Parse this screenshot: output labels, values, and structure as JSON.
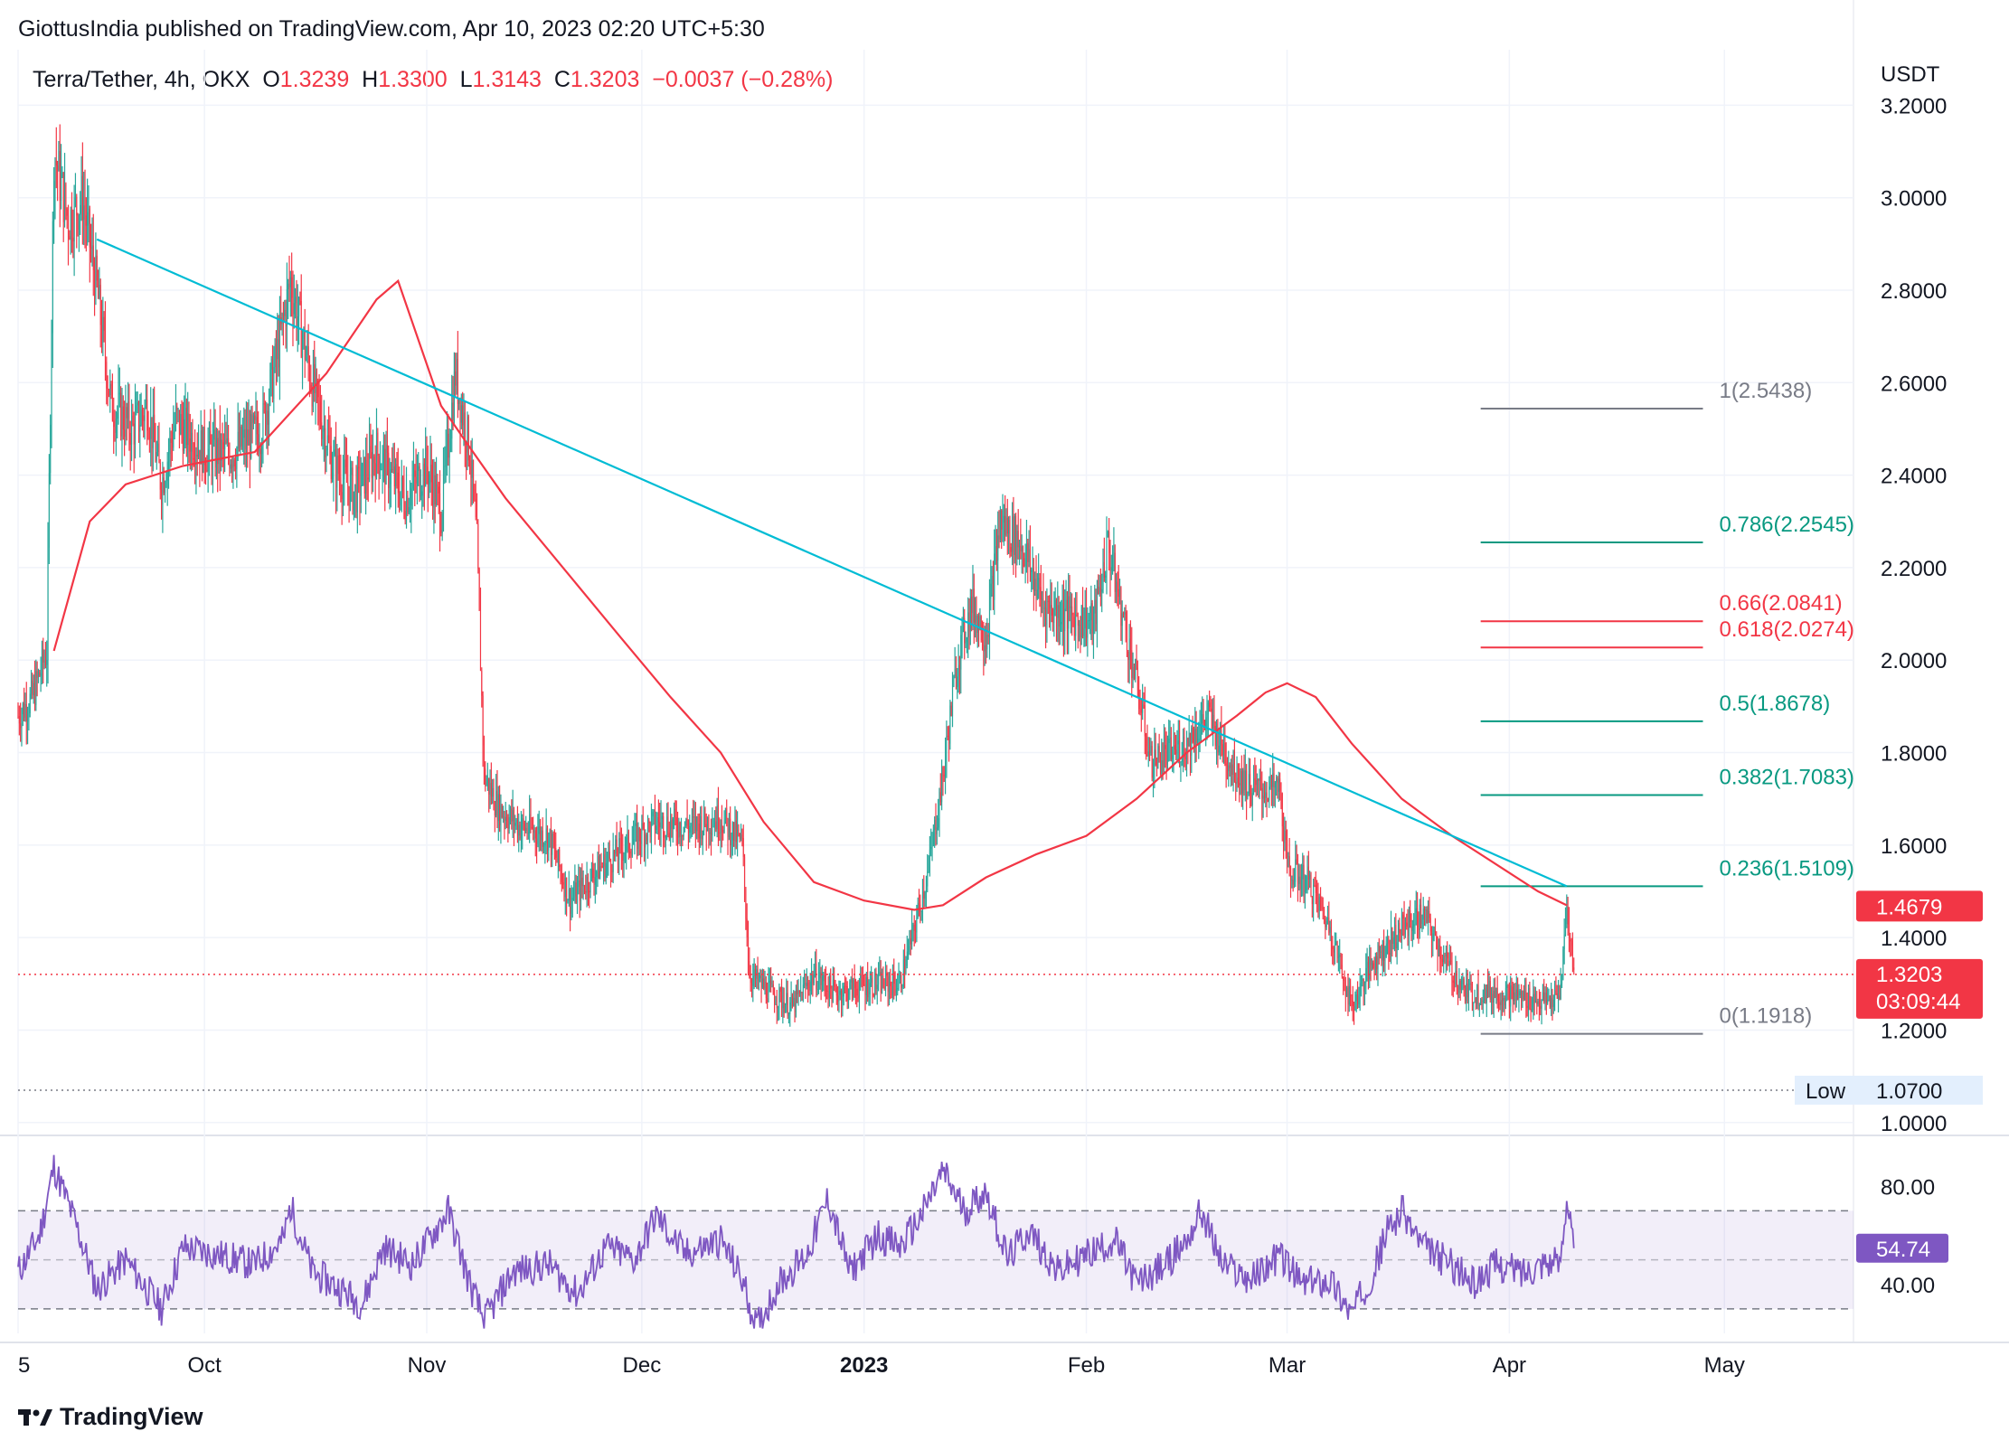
{
  "publisher_line": "GiottusIndia published on TradingView.com, Apr 10, 2023 02:20 UTC+5:30",
  "symbol": {
    "name": "Terra/Tether, 4h, OKX",
    "open_label": "O",
    "open": "1.3239",
    "high_label": "H",
    "high": "1.3300",
    "low_label": "L",
    "low": "1.3143",
    "close_label": "C",
    "close": "1.3203",
    "change": "−0.0037 (−0.28%)"
  },
  "brand": "TradingView",
  "colors": {
    "up": "#26a69a",
    "down": "#f23645",
    "ma": "#f23645",
    "trendline": "#00bcd4",
    "rsi": "#7e57c2",
    "fib_gray": "#787b86",
    "fib_green": "#089981",
    "fib_red": "#f23645",
    "grid": "#f0f3fa",
    "text": "#131722"
  },
  "chart_data": [
    {
      "type": "candlestick",
      "title": "Terra/Tether, 4h, OKX",
      "currency_label": "USDT",
      "ylim": [
        0.98,
        3.32
      ],
      "y_ticks": [
        "3.2000",
        "3.0000",
        "2.8000",
        "2.6000",
        "2.4000",
        "2.2000",
        "2.0000",
        "1.8000",
        "1.6000",
        "1.4000",
        "1.2000",
        "1.0000"
      ],
      "x_range": [
        "2022-09-05",
        "2023-05-19"
      ],
      "x_ticks": [
        {
          "date": "2022-09-05",
          "label": "5"
        },
        {
          "date": "2022-10-01",
          "label": "Oct"
        },
        {
          "date": "2022-11-01",
          "label": "Nov"
        },
        {
          "date": "2022-12-01",
          "label": "Dec"
        },
        {
          "date": "2023-01-01",
          "label": "2023"
        },
        {
          "date": "2023-02-01",
          "label": "Feb"
        },
        {
          "date": "2023-03-01",
          "label": "Mar"
        },
        {
          "date": "2023-04-01",
          "label": "Apr"
        },
        {
          "date": "2023-05-01",
          "label": "May"
        }
      ],
      "price_path": [
        [
          "2022-09-05",
          1.88
        ],
        [
          "2022-09-07",
          1.92
        ],
        [
          "2022-09-09",
          2.02
        ],
        [
          "2022-09-10",
          3.1
        ],
        [
          "2022-09-12",
          2.95
        ],
        [
          "2022-09-14",
          3.0
        ],
        [
          "2022-09-16",
          2.8
        ],
        [
          "2022-09-18",
          2.55
        ],
        [
          "2022-09-21",
          2.5
        ],
        [
          "2022-09-23",
          2.55
        ],
        [
          "2022-09-25",
          2.38
        ],
        [
          "2022-09-27",
          2.52
        ],
        [
          "2022-10-01",
          2.45
        ],
        [
          "2022-10-05",
          2.45
        ],
        [
          "2022-10-09",
          2.5
        ],
        [
          "2022-10-11",
          2.65
        ],
        [
          "2022-10-13",
          2.82
        ],
        [
          "2022-10-16",
          2.6
        ],
        [
          "2022-10-19",
          2.42
        ],
        [
          "2022-10-22",
          2.36
        ],
        [
          "2022-10-25",
          2.45
        ],
        [
          "2022-10-29",
          2.35
        ],
        [
          "2022-11-01",
          2.42
        ],
        [
          "2022-11-03",
          2.32
        ],
        [
          "2022-11-05",
          2.62
        ],
        [
          "2022-11-07",
          2.45
        ],
        [
          "2022-11-08",
          2.25
        ],
        [
          "2022-11-09",
          1.75
        ],
        [
          "2022-11-11",
          1.68
        ],
        [
          "2022-11-14",
          1.64
        ],
        [
          "2022-11-18",
          1.62
        ],
        [
          "2022-11-21",
          1.48
        ],
        [
          "2022-11-25",
          1.55
        ],
        [
          "2022-11-29",
          1.6
        ],
        [
          "2022-12-03",
          1.65
        ],
        [
          "2022-12-08",
          1.64
        ],
        [
          "2022-12-12",
          1.66
        ],
        [
          "2022-12-15",
          1.6
        ],
        [
          "2022-12-16",
          1.32
        ],
        [
          "2022-12-19",
          1.28
        ],
        [
          "2022-12-22",
          1.25
        ],
        [
          "2022-12-25",
          1.32
        ],
        [
          "2022-12-28",
          1.28
        ],
        [
          "2023-01-02",
          1.3
        ],
        [
          "2023-01-06",
          1.3
        ],
        [
          "2023-01-08",
          1.42
        ],
        [
          "2023-01-10",
          1.55
        ],
        [
          "2023-01-12",
          1.75
        ],
        [
          "2023-01-14",
          2.0
        ],
        [
          "2023-01-16",
          2.12
        ],
        [
          "2023-01-18",
          2.05
        ],
        [
          "2023-01-20",
          2.3
        ],
        [
          "2023-01-23",
          2.25
        ],
        [
          "2023-01-26",
          2.12
        ],
        [
          "2023-01-29",
          2.1
        ],
        [
          "2023-02-02",
          2.08
        ],
        [
          "2023-02-04",
          2.25
        ],
        [
          "2023-02-06",
          2.1
        ],
        [
          "2023-02-08",
          1.95
        ],
        [
          "2023-02-10",
          1.78
        ],
        [
          "2023-02-13",
          1.8
        ],
        [
          "2023-02-15",
          1.82
        ],
        [
          "2023-02-18",
          1.88
        ],
        [
          "2023-02-21",
          1.78
        ],
        [
          "2023-02-24",
          1.72
        ],
        [
          "2023-02-28",
          1.72
        ],
        [
          "2023-03-01",
          1.55
        ],
        [
          "2023-03-04",
          1.52
        ],
        [
          "2023-03-07",
          1.42
        ],
        [
          "2023-03-10",
          1.25
        ],
        [
          "2023-03-13",
          1.35
        ],
        [
          "2023-03-17",
          1.42
        ],
        [
          "2023-03-20",
          1.45
        ],
        [
          "2023-03-23",
          1.35
        ],
        [
          "2023-03-26",
          1.28
        ],
        [
          "2023-03-30",
          1.28
        ],
        [
          "2023-04-03",
          1.27
        ],
        [
          "2023-04-06",
          1.26
        ],
        [
          "2023-04-08",
          1.27
        ],
        [
          "2023-04-09",
          1.46
        ],
        [
          "2023-04-10",
          1.3203
        ]
      ],
      "moving_average": [
        [
          "2022-09-10",
          2.02
        ],
        [
          "2022-09-15",
          2.3
        ],
        [
          "2022-09-20",
          2.38
        ],
        [
          "2022-09-28",
          2.42
        ],
        [
          "2022-10-08",
          2.45
        ],
        [
          "2022-10-18",
          2.62
        ],
        [
          "2022-10-25",
          2.78
        ],
        [
          "2022-10-28",
          2.82
        ],
        [
          "2022-11-03",
          2.55
        ],
        [
          "2022-11-07",
          2.46
        ],
        [
          "2022-11-12",
          2.35
        ],
        [
          "2022-11-20",
          2.2
        ],
        [
          "2022-11-28",
          2.05
        ],
        [
          "2022-12-05",
          1.92
        ],
        [
          "2022-12-12",
          1.8
        ],
        [
          "2022-12-18",
          1.65
        ],
        [
          "2022-12-25",
          1.52
        ],
        [
          "2023-01-01",
          1.48
        ],
        [
          "2023-01-08",
          1.46
        ],
        [
          "2023-01-12",
          1.47
        ],
        [
          "2023-01-18",
          1.53
        ],
        [
          "2023-01-25",
          1.58
        ],
        [
          "2023-02-01",
          1.62
        ],
        [
          "2023-02-08",
          1.7
        ],
        [
          "2023-02-15",
          1.8
        ],
        [
          "2023-02-22",
          1.88
        ],
        [
          "2023-02-26",
          1.93
        ],
        [
          "2023-03-01",
          1.95
        ],
        [
          "2023-03-05",
          1.92
        ],
        [
          "2023-03-10",
          1.82
        ],
        [
          "2023-03-17",
          1.7
        ],
        [
          "2023-03-24",
          1.62
        ],
        [
          "2023-03-31",
          1.55
        ],
        [
          "2023-04-05",
          1.5
        ],
        [
          "2023-04-09",
          1.47
        ]
      ],
      "trendline": {
        "start": [
          "2022-09-16",
          2.91
        ],
        "end": [
          "2023-04-09",
          1.5109
        ]
      },
      "fib_levels": [
        {
          "label": "1(2.5438)",
          "value": 2.5438,
          "color": "#787b86"
        },
        {
          "label": "0.786(2.2545)",
          "value": 2.2545,
          "color": "#089981"
        },
        {
          "label": "0.66(2.0841)",
          "value": 2.0841,
          "color": "#f23645"
        },
        {
          "label": "0.618(2.0274)",
          "value": 2.0274,
          "color": "#f23645"
        },
        {
          "label": "0.5(1.8678)",
          "value": 1.8678,
          "color": "#089981"
        },
        {
          "label": "0.382(1.7083)",
          "value": 1.7083,
          "color": "#089981"
        },
        {
          "label": "0.236(1.5109)",
          "value": 1.5109,
          "color": "#089981"
        },
        {
          "label": "0(1.1918)",
          "value": 1.1918,
          "color": "#787b86"
        }
      ],
      "fib_range": [
        "2023-03-28",
        "2023-04-28"
      ],
      "last_price": {
        "value": 1.3203,
        "label": "1.3203",
        "countdown": "03:09:44"
      },
      "ma_price_tag": {
        "value": 1.4679,
        "label": "1.4679"
      },
      "low_marker": {
        "value": 1.07,
        "label": "Low",
        "value_label": "1.0700"
      }
    },
    {
      "type": "line",
      "title": "",
      "indicator": "RSI",
      "ylim": [
        20,
        100
      ],
      "y_ticks": [
        "80.00",
        "40.00"
      ],
      "band": [
        30,
        70
      ],
      "midline": 50,
      "current": {
        "value": 54.74,
        "label": "54.74"
      },
      "rsi_path": [
        [
          "2022-09-05",
          45
        ],
        [
          "2022-09-08",
          60
        ],
        [
          "2022-09-10",
          88
        ],
        [
          "2022-09-13",
          65
        ],
        [
          "2022-09-16",
          38
        ],
        [
          "2022-09-20",
          50
        ],
        [
          "2022-09-25",
          30
        ],
        [
          "2022-09-28",
          55
        ],
        [
          "2022-10-03",
          52
        ],
        [
          "2022-10-08",
          48
        ],
        [
          "2022-10-12",
          58
        ],
        [
          "2022-10-13",
          72
        ],
        [
          "2022-10-16",
          45
        ],
        [
          "2022-10-20",
          38
        ],
        [
          "2022-10-23",
          32
        ],
        [
          "2022-10-26",
          55
        ],
        [
          "2022-10-30",
          48
        ],
        [
          "2022-11-04",
          70
        ],
        [
          "2022-11-07",
          40
        ],
        [
          "2022-11-09",
          25
        ],
        [
          "2022-11-13",
          45
        ],
        [
          "2022-11-18",
          48
        ],
        [
          "2022-11-22",
          36
        ],
        [
          "2022-11-26",
          55
        ],
        [
          "2022-11-30",
          50
        ],
        [
          "2022-12-03",
          68
        ],
        [
          "2022-12-07",
          52
        ],
        [
          "2022-12-12",
          58
        ],
        [
          "2022-12-15",
          42
        ],
        [
          "2022-12-17",
          22
        ],
        [
          "2022-12-20",
          40
        ],
        [
          "2022-12-24",
          52
        ],
        [
          "2022-12-27",
          75
        ],
        [
          "2022-12-30",
          45
        ],
        [
          "2023-01-03",
          60
        ],
        [
          "2023-01-06",
          55
        ],
        [
          "2023-01-09",
          68
        ],
        [
          "2023-01-12",
          86
        ],
        [
          "2023-01-15",
          70
        ],
        [
          "2023-01-18",
          78
        ],
        [
          "2023-01-21",
          50
        ],
        [
          "2023-01-24",
          62
        ],
        [
          "2023-01-28",
          45
        ],
        [
          "2023-02-01",
          52
        ],
        [
          "2023-02-05",
          58
        ],
        [
          "2023-02-08",
          40
        ],
        [
          "2023-02-12",
          48
        ],
        [
          "2023-02-15",
          58
        ],
        [
          "2023-02-17",
          70
        ],
        [
          "2023-02-20",
          48
        ],
        [
          "2023-02-24",
          42
        ],
        [
          "2023-02-28",
          52
        ],
        [
          "2023-03-03",
          40
        ],
        [
          "2023-03-07",
          42
        ],
        [
          "2023-03-10",
          28
        ],
        [
          "2023-03-13",
          45
        ],
        [
          "2023-03-15",
          62
        ],
        [
          "2023-03-17",
          70
        ],
        [
          "2023-03-20",
          55
        ],
        [
          "2023-03-24",
          48
        ],
        [
          "2023-03-27",
          40
        ],
        [
          "2023-03-30",
          48
        ],
        [
          "2023-04-03",
          45
        ],
        [
          "2023-04-06",
          50
        ],
        [
          "2023-04-08",
          48
        ],
        [
          "2023-04-09",
          76
        ],
        [
          "2023-04-10",
          54.74
        ]
      ]
    }
  ]
}
